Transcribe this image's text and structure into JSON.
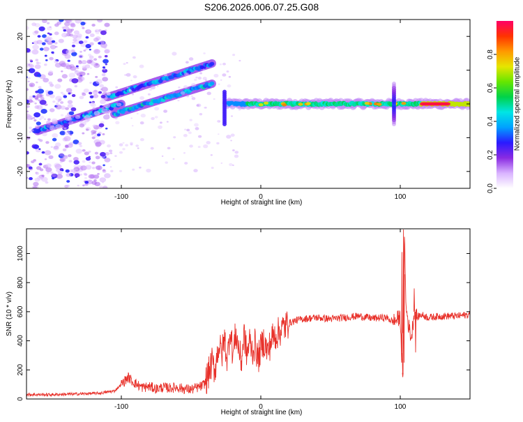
{
  "page_title": "S206.2026.006.07.25.G08",
  "chart_data": [
    {
      "type": "heatmap",
      "title": "S206.2026.006.07.25.G08",
      "xlabel": "Height of straight line (km)",
      "ylabel": "Frequency (Hz)",
      "xlim": [
        -168,
        150
      ],
      "ylim": [
        -25,
        25
      ],
      "x_ticks": [
        -100,
        0,
        100
      ],
      "y_ticks": [
        -20,
        -10,
        0,
        10,
        20
      ],
      "colorbar": {
        "label": "Normalized spectral amplitude",
        "range": [
          0,
          1
        ],
        "ticks": [
          0.0,
          0.2,
          0.4,
          0.6,
          0.8
        ],
        "tick_labels": [
          "0.0",
          "0.2",
          "0.4",
          "0.6",
          "0.8"
        ],
        "colors": [
          "#ffffff",
          "#d9b3ff",
          "#8a2be2",
          "#2a1aff",
          "#00a0ff",
          "#00e5e5",
          "#00d24a",
          "#66e600",
          "#e6e600",
          "#ff9900",
          "#ff3300",
          "#ff0066"
        ]
      },
      "features": [
        {
          "name": "main_carrier",
          "x_range": [
            -25,
            150
          ],
          "freq_hz": 0,
          "amplitude": [
            0.5,
            1.0
          ]
        },
        {
          "name": "rising_branch_1",
          "x_range": [
            -110,
            -35
          ],
          "freq_start_hz": 2,
          "freq_end_hz": 12,
          "amplitude": 0.3
        },
        {
          "name": "rising_branch_2",
          "x_range": [
            -105,
            -35
          ],
          "freq_start_hz": -3,
          "freq_end_hz": 6,
          "amplitude": 0.35
        },
        {
          "name": "rising_branch_3",
          "x_range": [
            -160,
            -100
          ],
          "freq_start_hz": -8,
          "freq_end_hz": 0,
          "amplitude": 0.3
        },
        {
          "name": "noise_region",
          "x_range": [
            -168,
            -110
          ],
          "freq_range_hz": [
            -25,
            25
          ],
          "amplitude": 0.1
        },
        {
          "name": "spike",
          "x_range": [
            93,
            98
          ],
          "freq_range_hz": [
            -6,
            6
          ],
          "amplitude": 0.3
        }
      ]
    },
    {
      "type": "line",
      "xlabel": "Height of straight line (km)",
      "ylabel": "SNR (10 * v/v)",
      "xlim": [
        -168,
        150
      ],
      "ylim": [
        0,
        1170
      ],
      "x_ticks": [
        -100,
        0,
        100
      ],
      "y_ticks": [
        0,
        200,
        400,
        600,
        800,
        1000
      ],
      "line_color": "#e8312a",
      "series": [
        {
          "name": "SNR",
          "x": [
            -168,
            -150,
            -130,
            -115,
            -105,
            -100,
            -95,
            -92,
            -88,
            -85,
            -80,
            -75,
            -70,
            -65,
            -60,
            -55,
            -50,
            -45,
            -42,
            -40,
            -38,
            -35,
            -33,
            -30,
            -28,
            -26,
            -24,
            -22,
            -20,
            -18,
            -16,
            -14,
            -12,
            -10,
            -8,
            -6,
            -4,
            -2,
            0,
            2,
            5,
            8,
            12,
            16,
            20,
            25,
            30,
            40,
            50,
            60,
            70,
            80,
            90,
            95,
            100,
            101,
            102,
            103,
            104,
            106,
            108,
            110,
            112,
            115,
            120,
            130,
            140,
            150
          ],
          "y": [
            30,
            30,
            35,
            40,
            55,
            100,
            150,
            120,
            95,
            80,
            85,
            70,
            80,
            75,
            80,
            70,
            65,
            80,
            90,
            110,
            160,
            250,
            200,
            380,
            300,
            420,
            260,
            500,
            300,
            450,
            360,
            250,
            450,
            300,
            400,
            330,
            380,
            270,
            350,
            400,
            320,
            420,
            450,
            490,
            520,
            540,
            550,
            560,
            550,
            560,
            570,
            555,
            560,
            530,
            560,
            300,
            150,
            1160,
            650,
            500,
            420,
            600,
            560,
            580,
            560,
            570,
            570,
            580
          ]
        }
      ]
    }
  ]
}
